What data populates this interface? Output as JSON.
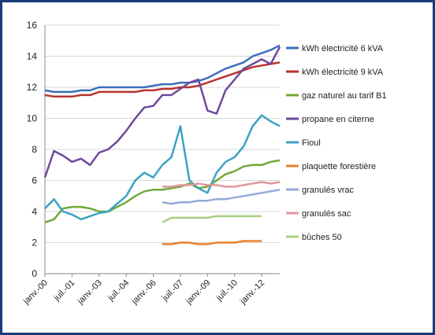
{
  "chart_data": {
    "type": "line",
    "categories": [
      "janv.-00",
      null,
      null,
      "juil.-01",
      null,
      null,
      "janv.-03",
      null,
      null,
      "juil.-04",
      null,
      null,
      "janv.-06",
      null,
      null,
      "juil.-07",
      null,
      null,
      "janv.-09",
      null,
      null,
      "juil.-10",
      null,
      null,
      "janv.-12",
      null,
      null
    ],
    "series": [
      {
        "name": "kWh électricité 6 kVA",
        "color": "#3a6fba",
        "values": [
          11.8,
          11.7,
          11.7,
          11.7,
          11.8,
          11.8,
          12.0,
          12.0,
          12.0,
          12.0,
          12.0,
          12.0,
          12.1,
          12.2,
          12.2,
          12.3,
          12.3,
          12.4,
          12.6,
          12.9,
          13.2,
          13.4,
          13.6,
          14.0,
          14.2,
          14.4,
          14.7
        ]
      },
      {
        "name": "kWh électricité 9 kVA",
        "color": "#b8332f",
        "values": [
          11.5,
          11.4,
          11.4,
          11.4,
          11.5,
          11.5,
          11.7,
          11.7,
          11.7,
          11.7,
          11.7,
          11.8,
          11.8,
          11.9,
          11.9,
          12.0,
          12.0,
          12.1,
          12.3,
          12.5,
          12.7,
          12.9,
          13.1,
          13.3,
          13.4,
          13.5,
          13.6
        ]
      },
      {
        "name": "gaz naturel au tarif B1",
        "color": "#72a83a",
        "values": [
          3.3,
          3.5,
          4.2,
          4.3,
          4.3,
          4.2,
          4.0,
          4.0,
          4.3,
          4.6,
          5.0,
          5.3,
          5.4,
          5.4,
          5.5,
          5.6,
          5.8,
          5.5,
          5.6,
          6.0,
          6.4,
          6.6,
          6.9,
          7.0,
          7.0,
          7.2,
          7.3
        ]
      },
      {
        "name": "propane en citerne",
        "color": "#6e4a9a",
        "values": [
          6.2,
          7.9,
          7.6,
          7.2,
          7.4,
          7.0,
          7.8,
          8.0,
          8.5,
          9.2,
          10.0,
          10.7,
          10.8,
          11.5,
          11.5,
          11.9,
          12.3,
          12.5,
          10.5,
          10.3,
          11.8,
          12.5,
          13.2,
          13.5,
          13.8,
          13.5,
          14.6
        ]
      },
      {
        "name": "Fioul",
        "color": "#3da2c3",
        "values": [
          4.2,
          4.8,
          4.0,
          3.8,
          3.5,
          3.7,
          3.9,
          4.0,
          4.5,
          5.0,
          6.0,
          6.5,
          6.2,
          7.0,
          7.5,
          9.5,
          6.0,
          5.5,
          5.2,
          6.5,
          7.2,
          7.5,
          8.2,
          9.5,
          10.2,
          9.8,
          9.5
        ]
      },
      {
        "name": "plaquette forestière",
        "color": "#e8822d",
        "values": [
          null,
          null,
          null,
          null,
          null,
          null,
          null,
          null,
          null,
          null,
          null,
          null,
          null,
          1.9,
          1.9,
          2.0,
          2.0,
          1.9,
          1.9,
          2.0,
          2.0,
          2.0,
          2.1,
          2.1,
          2.1,
          null,
          null
        ]
      },
      {
        "name": "granulés vrac",
        "color": "#92a9d6",
        "values": [
          null,
          null,
          null,
          null,
          null,
          null,
          null,
          null,
          null,
          null,
          null,
          null,
          null,
          4.6,
          4.5,
          4.6,
          4.6,
          4.7,
          4.7,
          4.8,
          4.8,
          4.9,
          5.0,
          5.1,
          5.2,
          5.3,
          5.4
        ]
      },
      {
        "name": "granulés sac",
        "color": "#e1999b",
        "values": [
          null,
          null,
          null,
          null,
          null,
          null,
          null,
          null,
          null,
          null,
          null,
          null,
          null,
          5.6,
          5.6,
          5.7,
          5.7,
          5.8,
          5.7,
          5.7,
          5.6,
          5.6,
          5.7,
          5.8,
          5.9,
          5.8,
          5.9
        ]
      },
      {
        "name": "bûches 50",
        "color": "#a8cf82",
        "values": [
          null,
          null,
          null,
          null,
          null,
          null,
          null,
          null,
          null,
          null,
          null,
          null,
          null,
          3.3,
          3.6,
          3.6,
          3.6,
          3.6,
          3.6,
          3.7,
          3.7,
          3.7,
          3.7,
          3.7,
          3.7,
          null,
          null
        ]
      }
    ],
    "ylim": [
      0,
      16
    ],
    "yticks": [
      0,
      2,
      4,
      6,
      8,
      10,
      12,
      14,
      16
    ],
    "grid": true
  }
}
